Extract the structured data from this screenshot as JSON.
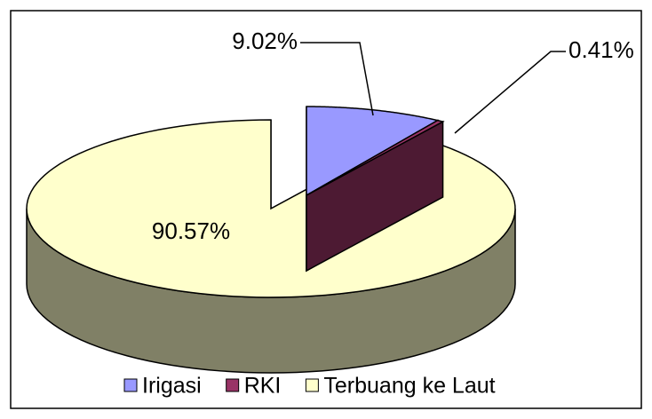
{
  "chart_data": {
    "type": "pie3d",
    "categories": [
      "Irigasi",
      "RKI",
      "Terbuang ke Laut"
    ],
    "values": [
      9.02,
      0.41,
      90.57
    ],
    "value_labels": [
      "9.02%",
      "0.41%",
      "90.57%"
    ],
    "colors": [
      "#9999ff",
      "#993366",
      "#ffffcc"
    ],
    "legend": "bottom"
  }
}
